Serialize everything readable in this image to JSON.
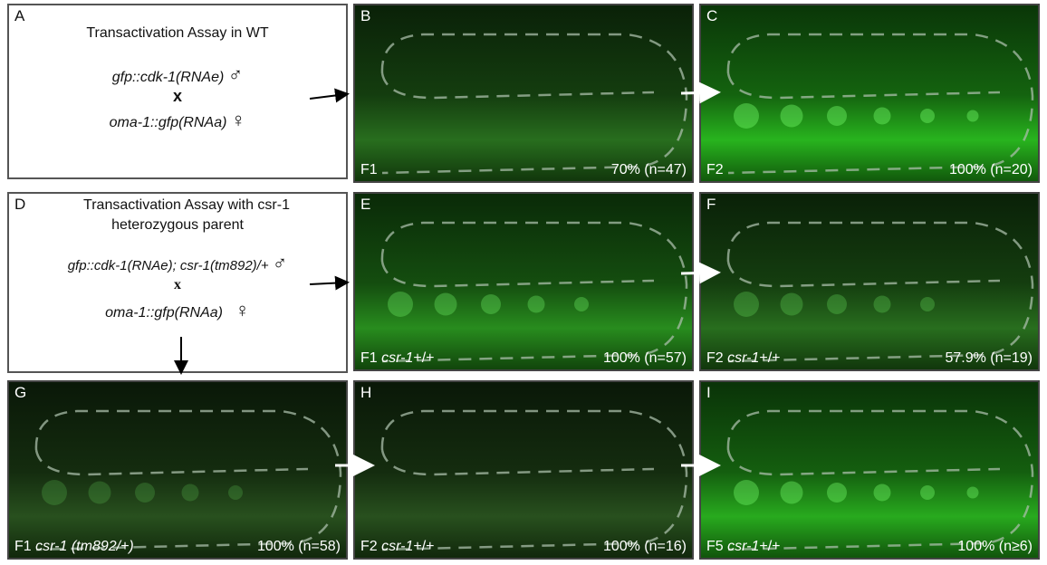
{
  "panels": [
    {
      "letter": "A",
      "title": "Transactivation Assay in WT",
      "male": {
        "genotype": "gfp::cdk-1(RNAe)",
        "symbol": "♂"
      },
      "cross": "x",
      "female": {
        "genotype": "oma-1::gfp(RNAa)",
        "symbol": "♀"
      }
    },
    {
      "letter": "B",
      "generation": "F1",
      "percent": "70% (n=47)"
    },
    {
      "letter": "C",
      "generation": "F2",
      "percent": "100% (n=20)"
    },
    {
      "letter": "D",
      "title": [
        "Transactivation Assay with csr-1",
        "heterozygous parent"
      ],
      "male": {
        "genotype": "gfp::cdk-1(RNAe); csr-1(tm892)/+",
        "symbol": "♂"
      },
      "cross": "x",
      "female": {
        "genotype": "oma-1::gfp(RNAa)",
        "symbol": "♀"
      }
    },
    {
      "letter": "E",
      "generation": "F1",
      "gene": "csr-1",
      "allele": "+/+",
      "percent": "100% (n=57)"
    },
    {
      "letter": "F",
      "generation": "F2",
      "gene": "csr-1",
      "allele": "+/+",
      "percent": "57.9% (n=19)"
    },
    {
      "letter": "G",
      "generation": "F1",
      "gene": "csr-1",
      "allele": "(tm892/+)",
      "percent": "100% (n=58)"
    },
    {
      "letter": "H",
      "generation": "F2",
      "gene": "csr-1",
      "allele": "+/+",
      "percent": "100% (n=16)"
    },
    {
      "letter": "I",
      "generation": "F5",
      "gene": "csr-1",
      "allele": "+/+",
      "percent": "100% (n≥6)"
    }
  ]
}
